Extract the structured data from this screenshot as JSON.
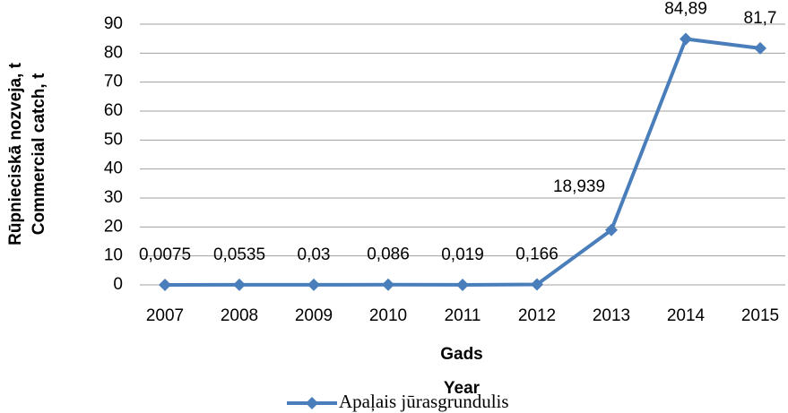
{
  "chart_data": {
    "type": "line",
    "y_label": [
      "Rūpnieciskā nozveja, t",
      "Commercial catch, t"
    ],
    "x_label": [
      "Gads",
      "Year"
    ],
    "categories": [
      "2007",
      "2008",
      "2009",
      "2010",
      "2011",
      "2012",
      "2013",
      "2014",
      "2015"
    ],
    "series": [
      {
        "name": "Apaļais jūrasgrundulis",
        "color": "#4a7ebb",
        "values": [
          0.0075,
          0.0535,
          0.03,
          0.086,
          0.019,
          0.166,
          18.939,
          84.89,
          81.7
        ],
        "value_labels": [
          "0,0075",
          "0,0535",
          "0,03",
          "0,086",
          "0,019",
          "0,166",
          "18,939",
          "84,89",
          "81,7"
        ]
      }
    ],
    "ylim": [
      0,
      90
    ],
    "yticks": [
      0,
      10,
      20,
      30,
      40,
      50,
      60,
      70,
      80,
      90
    ],
    "grid": true,
    "legend": "bottom"
  }
}
